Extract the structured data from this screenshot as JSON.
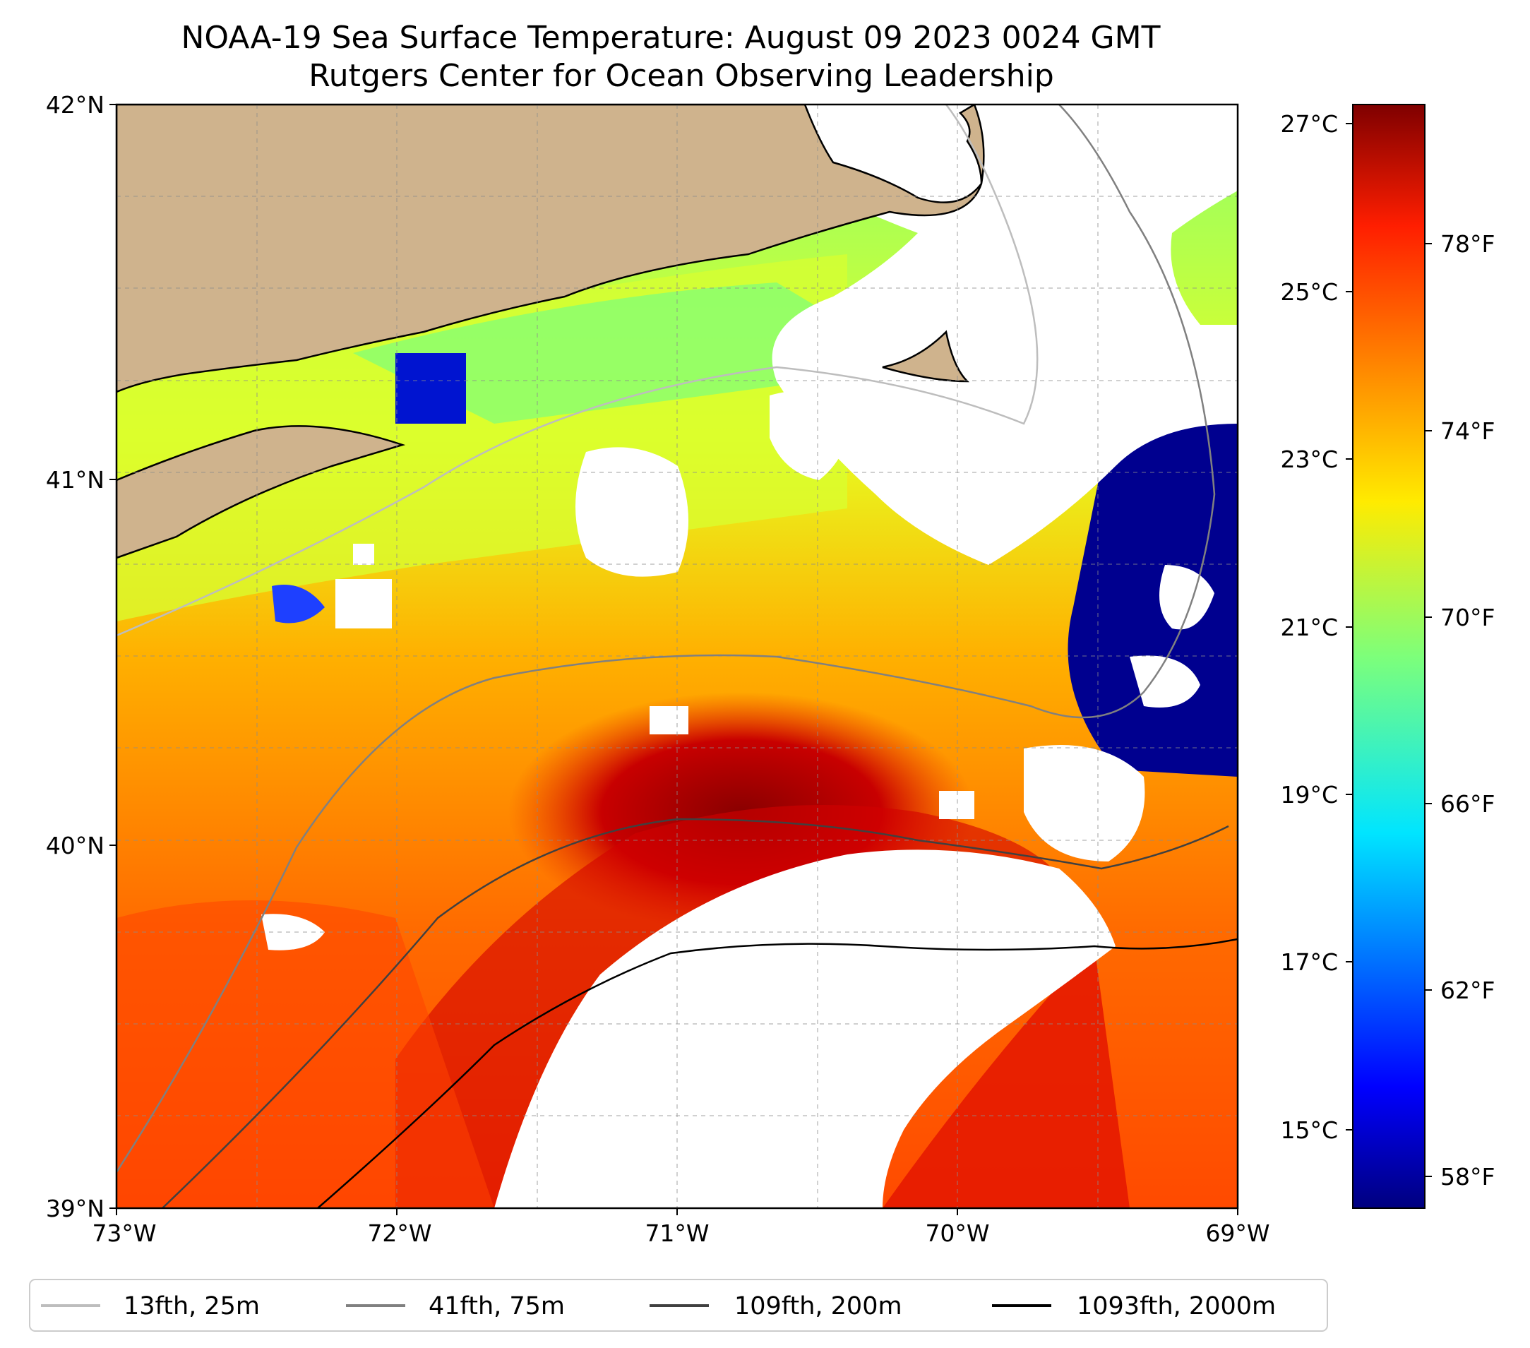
{
  "title": {
    "line1": "NOAA-19 Sea Surface Temperature: August 09 2023 0024 GMT",
    "line2": "Rutgers Center for Ocean Observing Leadership"
  },
  "map": {
    "lat_ticks": [
      "42°N",
      "41°N",
      "40°N",
      "39°N"
    ],
    "lon_ticks": [
      "73°W",
      "72°W",
      "71°W",
      "70°W",
      "69°W"
    ],
    "extent": {
      "lon_min": -73,
      "lon_max": -69,
      "lat_min": 39,
      "lat_max": 42
    },
    "colors": {
      "land": "#cfb38d",
      "coast": "#000000",
      "missing": "#ffffff"
    }
  },
  "colorbar": {
    "celsius_ticks": [
      "27°C",
      "25°C",
      "23°C",
      "21°C",
      "19°C",
      "17°C",
      "15°C"
    ],
    "fahrenheit_ticks": [
      "78°F",
      "74°F",
      "70°F",
      "66°F",
      "62°F",
      "58°F"
    ],
    "colormap": "jet"
  },
  "legend": {
    "items": [
      {
        "label": "13fth, 25m",
        "color": "#bdbdbd"
      },
      {
        "label": "41fth, 75m",
        "color": "#808080"
      },
      {
        "label": "109fth, 200m",
        "color": "#404040"
      },
      {
        "label": "1093fth, 2000m",
        "color": "#000000"
      }
    ]
  }
}
